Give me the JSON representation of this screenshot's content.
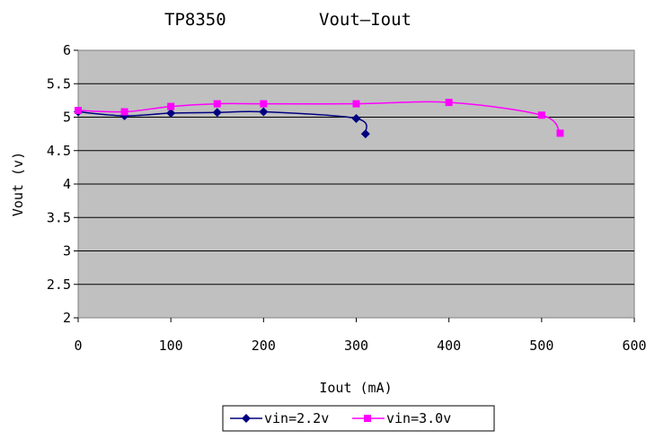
{
  "chart_data": {
    "type": "line",
    "title": "TP8350",
    "subtitle": "Vout—Iout",
    "xlabel": "Iout (mA)",
    "ylabel": "Vout (v)",
    "xlim": [
      0,
      600
    ],
    "ylim": [
      2,
      6
    ],
    "x_ticks": [
      "0",
      "100",
      "200",
      "300",
      "400",
      "500",
      "600"
    ],
    "y_ticks": [
      "2",
      "2.5",
      "3",
      "3.5",
      "4",
      "4.5",
      "5",
      "5.5",
      "6"
    ],
    "grid": true,
    "legend_position": "bottom",
    "plot_background": "#c0c0c0",
    "series": [
      {
        "name": "vin=2.2v",
        "color": "#000080",
        "marker": "diamond",
        "x": [
          0,
          50,
          100,
          150,
          200,
          300,
          310
        ],
        "y": [
          5.08,
          5.02,
          5.06,
          5.07,
          5.08,
          4.98,
          4.75
        ]
      },
      {
        "name": "vin=3.0v",
        "color": "#ff00ff",
        "marker": "square",
        "x": [
          0,
          50,
          100,
          150,
          200,
          300,
          400,
          500,
          520
        ],
        "y": [
          5.1,
          5.08,
          5.16,
          5.2,
          5.2,
          5.2,
          5.22,
          5.03,
          4.76
        ]
      }
    ]
  }
}
